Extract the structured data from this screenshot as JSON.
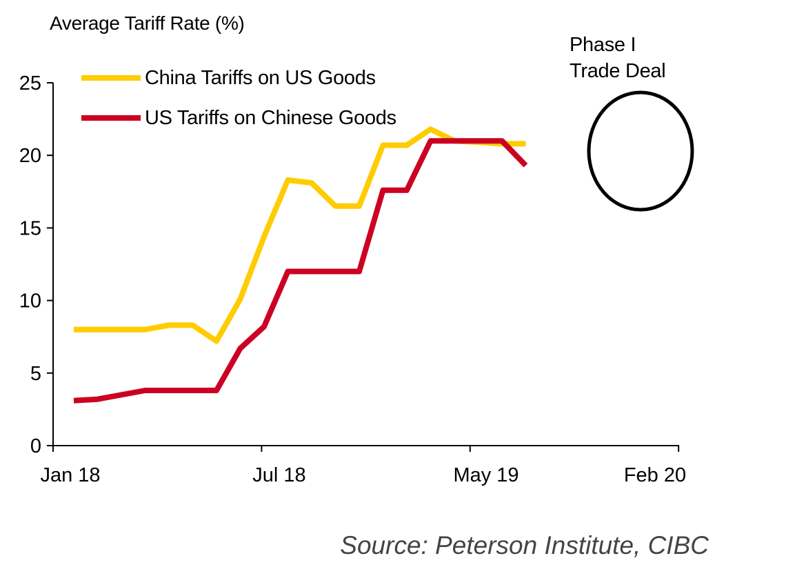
{
  "chart_data": {
    "type": "line",
    "title": "",
    "ylabel": "Average Tariff Rate (%)",
    "xlabel": "",
    "ylim": [
      0,
      25
    ],
    "yticks": [
      0,
      5,
      10,
      15,
      20,
      25
    ],
    "x": [
      "Jan 18",
      "Feb 18",
      "Mar 18",
      "Apr 18",
      "May 18",
      "Jun 18",
      "Jul 18",
      "Aug 18",
      "Sep 18",
      "Oct 18",
      "Nov 18",
      "Dec 18",
      "Jan 19",
      "Feb 19",
      "Mar 19",
      "Apr 19",
      "May 19",
      "Jun 19",
      "Jul 19",
      "Aug 19",
      "Sep 19",
      "Oct 19",
      "Nov 19",
      "Dec 19",
      "Jan 20",
      "Feb 20"
    ],
    "xtick_labels": [
      {
        "label": "Jan 18",
        "index": 0
      },
      {
        "label": "Jul 18",
        "index": 6
      },
      {
        "label": "May 19",
        "index": 16
      },
      {
        "label": "Feb 20",
        "index": 25
      }
    ],
    "series": [
      {
        "name": "China Tariffs on US Goods",
        "color": "#FFCC00",
        "points": [
          {
            "x": "Jan 18",
            "y": 8.0
          },
          {
            "x": "Mar 18",
            "y": 8.0
          },
          {
            "x": "Apr 18",
            "y": 8.0
          },
          {
            "x": "May 18",
            "y": 8.3
          },
          {
            "x": "Jun 18",
            "y": 8.3
          },
          {
            "x": "Jul 18",
            "y": 7.2
          },
          {
            "x": "Aug 18",
            "y": 10.1
          },
          {
            "x": "Sep 18",
            "y": 14.4
          },
          {
            "x": "Oct 18",
            "y": 18.3
          },
          {
            "x": "Nov 18",
            "y": 18.1
          },
          {
            "x": "Dec 18",
            "y": 16.5
          },
          {
            "x": "Jan 19",
            "y": 16.5
          },
          {
            "x": "Feb 19",
            "y": 20.7
          },
          {
            "x": "Mar 19",
            "y": 20.7
          },
          {
            "x": "Apr 19",
            "y": 21.8
          },
          {
            "x": "May 19",
            "y": 21.0
          },
          {
            "x": "Jun 19",
            "y": 20.9
          },
          {
            "x": "Jul 19",
            "y": 20.8
          },
          {
            "x": "Aug 19",
            "y": 20.8
          }
        ]
      },
      {
        "name": "US Tariffs on Chinese Goods",
        "color": "#CC0022",
        "points": [
          {
            "x": "Jan 18",
            "y": 3.1
          },
          {
            "x": "Feb 18",
            "y": 3.2
          },
          {
            "x": "Apr 18",
            "y": 3.8
          },
          {
            "x": "May 18",
            "y": 3.8
          },
          {
            "x": "Jun 18",
            "y": 3.8
          },
          {
            "x": "Jul 18",
            "y": 3.8
          },
          {
            "x": "Aug 18",
            "y": 6.7
          },
          {
            "x": "Sep 18",
            "y": 8.2
          },
          {
            "x": "Oct 18",
            "y": 12.0
          },
          {
            "x": "Nov 18",
            "y": 12.0
          },
          {
            "x": "Dec 18",
            "y": 12.0
          },
          {
            "x": "Jan 19",
            "y": 12.0
          },
          {
            "x": "Feb 19",
            "y": 17.6
          },
          {
            "x": "Mar 19",
            "y": 17.6
          },
          {
            "x": "Apr 19",
            "y": 21.0
          },
          {
            "x": "May 19",
            "y": 21.0
          },
          {
            "x": "Jun 19",
            "y": 21.0
          },
          {
            "x": "Jul 19",
            "y": 21.0
          },
          {
            "x": "Aug 19",
            "y": 19.3
          }
        ]
      }
    ],
    "legend": "top-left",
    "grid": false,
    "annotation": {
      "text_lines": [
        "Phase I",
        "Trade Deal"
      ],
      "shape": "ellipse"
    }
  },
  "source": "Source: Peterson Institute, CIBC"
}
